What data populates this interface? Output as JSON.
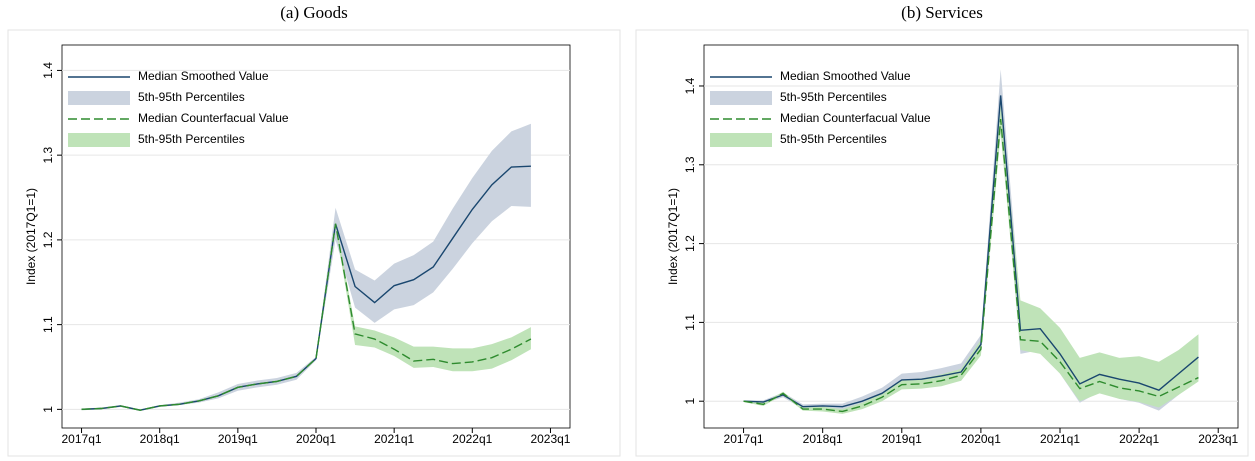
{
  "chart_data": [
    {
      "type": "line",
      "title": "(a) Goods",
      "ylabel": "Index (2017Q1=1)",
      "x": [
        "2017q1",
        "2017q2",
        "2017q3",
        "2017q4",
        "2018q1",
        "2018q2",
        "2018q3",
        "2018q4",
        "2019q1",
        "2019q2",
        "2019q3",
        "2019q4",
        "2020q1",
        "2020q2",
        "2020q3",
        "2020q4",
        "2021q1",
        "2021q2",
        "2021q3",
        "2021q4",
        "2022q1",
        "2022q2",
        "2022q3",
        "2022q4"
      ],
      "xlim": [
        "2016q4",
        "2023q2"
      ],
      "xticks": [
        "2017q1",
        "2018q1",
        "2019q1",
        "2020q1",
        "2021q1",
        "2022q1",
        "2023q1"
      ],
      "ylim": [
        0.978,
        1.43
      ],
      "yticks": [
        1,
        1.1,
        1.2,
        1.3,
        1.4
      ],
      "grid": true,
      "legend": "upper left",
      "series": [
        {
          "name": "Median Smoothed Value",
          "kind": "line",
          "color": "#1a476f",
          "dash": false,
          "values": [
            1.0,
            1.001,
            1.004,
            0.999,
            1.004,
            1.006,
            1.01,
            1.016,
            1.026,
            1.03,
            1.033,
            1.039,
            1.06,
            1.219,
            1.145,
            1.126,
            1.146,
            1.153,
            1.168,
            1.202,
            1.236,
            1.265,
            1.286,
            1.287
          ]
        },
        {
          "name": "5th-95th Percentiles",
          "kind": "band",
          "color": "#cbd3df",
          "upper": [
            1.001,
            1.002,
            1.005,
            1.0,
            1.005,
            1.008,
            1.012,
            1.02,
            1.03,
            1.034,
            1.037,
            1.043,
            1.062,
            1.238,
            1.165,
            1.152,
            1.172,
            1.182,
            1.198,
            1.237,
            1.273,
            1.305,
            1.328,
            1.337
          ],
          "lower": [
            0.999,
            1.0,
            1.003,
            0.998,
            1.003,
            1.005,
            1.008,
            1.013,
            1.022,
            1.026,
            1.029,
            1.035,
            1.058,
            1.2,
            1.12,
            1.102,
            1.118,
            1.123,
            1.138,
            1.166,
            1.196,
            1.222,
            1.24,
            1.239
          ]
        },
        {
          "name": "Median Counterfacual Value",
          "kind": "line",
          "color": "#2e8b2e",
          "dash": true,
          "values": [
            1.0,
            1.001,
            1.004,
            0.999,
            1.004,
            1.006,
            1.01,
            1.016,
            1.026,
            1.03,
            1.033,
            1.039,
            1.06,
            1.219,
            1.089,
            1.083,
            1.071,
            1.057,
            1.059,
            1.054,
            1.056,
            1.061,
            1.071,
            1.083
          ]
        },
        {
          "name": "5th-95th Percentiles",
          "kind": "band",
          "color": "#bfe3b8",
          "upper": [
            1.001,
            1.002,
            1.005,
            1.0,
            1.005,
            1.007,
            1.011,
            1.017,
            1.027,
            1.031,
            1.034,
            1.04,
            1.061,
            1.222,
            1.098,
            1.093,
            1.085,
            1.074,
            1.074,
            1.072,
            1.072,
            1.077,
            1.085,
            1.097
          ],
          "lower": [
            0.999,
            1.0,
            1.003,
            0.998,
            1.003,
            1.005,
            1.009,
            1.015,
            1.025,
            1.029,
            1.032,
            1.038,
            1.059,
            1.215,
            1.076,
            1.073,
            1.063,
            1.049,
            1.05,
            1.045,
            1.045,
            1.048,
            1.058,
            1.071
          ]
        }
      ]
    },
    {
      "type": "line",
      "title": "(b) Services",
      "ylabel": "Index (2017Q1=1)",
      "x": [
        "2017q1",
        "2017q2",
        "2017q3",
        "2017q4",
        "2018q1",
        "2018q2",
        "2018q3",
        "2018q4",
        "2019q1",
        "2019q2",
        "2019q3",
        "2019q4",
        "2020q1",
        "2020q2",
        "2020q3",
        "2020q4",
        "2021q1",
        "2021q2",
        "2021q3",
        "2021q4",
        "2022q1",
        "2022q2",
        "2022q3",
        "2022q4"
      ],
      "xlim": [
        "2016q3",
        "2023q2"
      ],
      "xticks": [
        "2017q1",
        "2018q1",
        "2019q1",
        "2020q1",
        "2021q1",
        "2022q1",
        "2023q1"
      ],
      "ylim": [
        0.966,
        1.452
      ],
      "yticks": [
        1,
        1.1,
        1.2,
        1.3,
        1.4
      ],
      "grid": true,
      "legend": "upper left",
      "series": [
        {
          "name": "Median Smoothed Value",
          "kind": "line",
          "color": "#1a476f",
          "dash": false,
          "values": [
            1.0,
            0.999,
            1.008,
            0.993,
            0.994,
            0.993,
            1.0,
            1.01,
            1.027,
            1.028,
            1.032,
            1.037,
            1.072,
            1.388,
            1.09,
            1.092,
            1.06,
            1.022,
            1.034,
            1.028,
            1.023,
            1.014,
            1.035,
            1.056
          ]
        },
        {
          "name": "5th-95th Percentiles",
          "kind": "band",
          "color": "#cbd3df",
          "upper": [
            1.001,
            1.001,
            1.011,
            0.996,
            0.997,
            0.997,
            1.006,
            1.017,
            1.035,
            1.037,
            1.042,
            1.048,
            1.084,
            1.421,
            1.12,
            1.11,
            1.085,
            1.045,
            1.055,
            1.05,
            1.045,
            1.04,
            1.06,
            1.082
          ],
          "lower": [
            0.999,
            0.997,
            1.005,
            0.99,
            0.989,
            0.988,
            0.993,
            1.002,
            1.018,
            1.019,
            1.022,
            1.026,
            1.06,
            1.355,
            1.06,
            1.065,
            1.035,
            0.998,
            1.012,
            1.003,
            0.998,
            0.988,
            1.008,
            1.03
          ]
        },
        {
          "name": "Median Counterfacual Value",
          "kind": "line",
          "color": "#2e8b2e",
          "dash": true,
          "values": [
            1.0,
            0.996,
            1.01,
            0.99,
            0.99,
            0.987,
            0.994,
            1.005,
            1.021,
            1.022,
            1.026,
            1.033,
            1.066,
            1.358,
            1.078,
            1.076,
            1.05,
            1.016,
            1.025,
            1.017,
            1.013,
            1.006,
            1.018,
            1.03
          ]
        },
        {
          "name": "5th-95th Percentiles",
          "kind": "band",
          "color": "#bfe3b8",
          "upper": [
            1.001,
            0.998,
            1.012,
            0.992,
            0.993,
            0.99,
            0.998,
            1.01,
            1.027,
            1.029,
            1.034,
            1.041,
            1.078,
            1.375,
            1.128,
            1.118,
            1.093,
            1.055,
            1.062,
            1.055,
            1.057,
            1.05,
            1.065,
            1.085
          ],
          "lower": [
            0.999,
            0.994,
            1.008,
            0.988,
            0.987,
            0.984,
            0.99,
            1.0,
            1.015,
            1.016,
            1.019,
            1.026,
            1.058,
            1.34,
            1.065,
            1.06,
            1.035,
            1.0,
            1.01,
            1.003,
            0.999,
            0.992,
            1.008,
            1.025
          ]
        }
      ]
    }
  ]
}
